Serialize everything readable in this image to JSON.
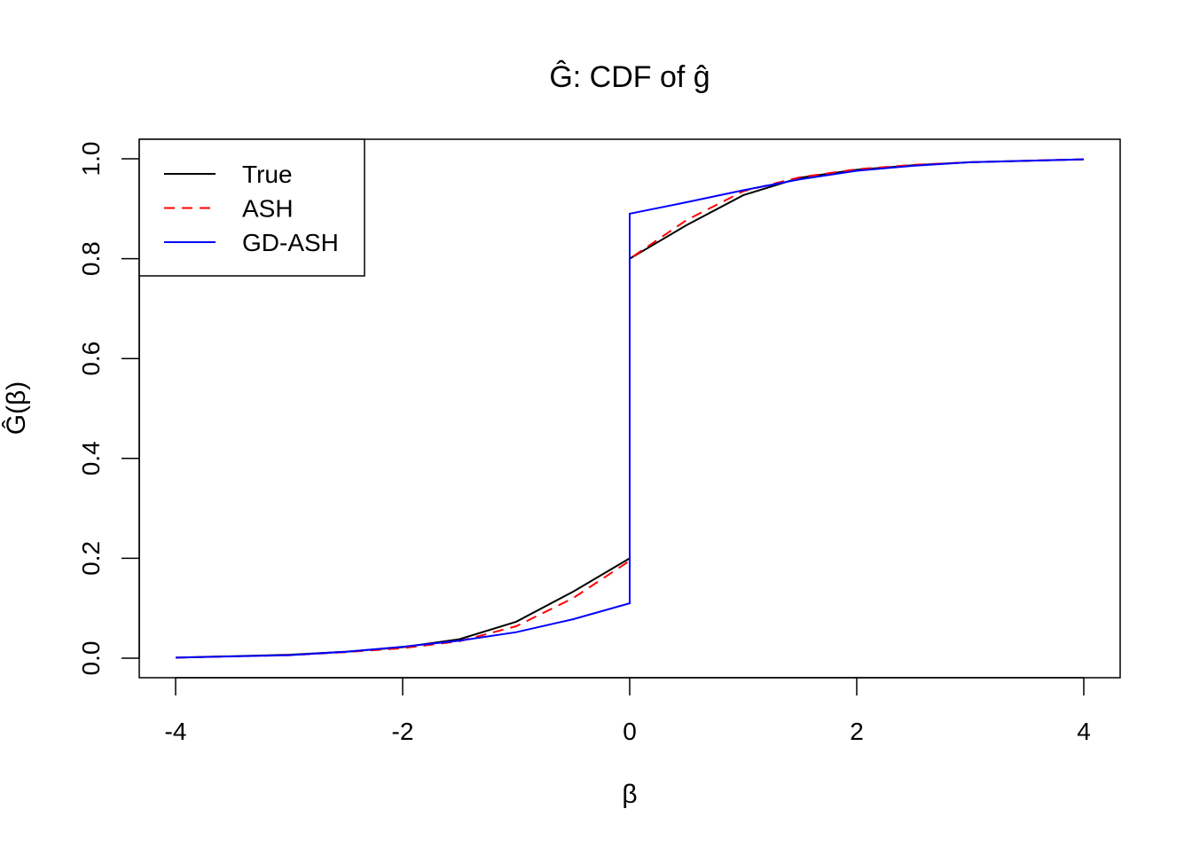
{
  "chart_data": {
    "type": "line",
    "title": "Ĝ: CDF of ĝ",
    "xlabel": "β",
    "ylabel": "Ĝ(β)",
    "xlim": [
      -4,
      4
    ],
    "ylim": [
      0,
      1
    ],
    "xticks": [
      "-4",
      "-2",
      "0",
      "2",
      "4"
    ],
    "yticks": [
      "0.0",
      "0.2",
      "0.4",
      "0.6",
      "0.8",
      "1.0"
    ],
    "grid": false,
    "legend_position": "top-left",
    "series": [
      {
        "name": "True",
        "color": "#000000",
        "dash": "solid",
        "points": [
          [
            -4,
            0.001
          ],
          [
            -3,
            0.007
          ],
          [
            -2.5,
            0.013
          ],
          [
            -2,
            0.022
          ],
          [
            -1.5,
            0.038
          ],
          [
            -1,
            0.073
          ],
          [
            -0.5,
            0.133
          ],
          [
            0,
            0.2
          ],
          [
            0,
            0.8
          ],
          [
            0.5,
            0.867
          ],
          [
            1,
            0.927
          ],
          [
            1.5,
            0.962
          ],
          [
            2,
            0.978
          ],
          [
            2.5,
            0.987
          ],
          [
            3,
            0.993
          ],
          [
            4,
            0.999
          ]
        ]
      },
      {
        "name": "ASH",
        "color": "#ff0000",
        "dash": "dashed",
        "points": [
          [
            -4,
            0.001
          ],
          [
            -3,
            0.006
          ],
          [
            -2.5,
            0.012
          ],
          [
            -2,
            0.02
          ],
          [
            -1.5,
            0.034
          ],
          [
            -1,
            0.064
          ],
          [
            -0.5,
            0.12
          ],
          [
            0,
            0.195
          ],
          [
            0,
            0.8
          ],
          [
            0.5,
            0.877
          ],
          [
            1,
            0.935
          ],
          [
            1.5,
            0.963
          ],
          [
            2,
            0.979
          ],
          [
            2.5,
            0.988
          ],
          [
            3,
            0.993
          ],
          [
            4,
            0.999
          ]
        ]
      },
      {
        "name": "GD-ASH",
        "color": "#0000ff",
        "dash": "solid",
        "points": [
          [
            -4,
            0.001
          ],
          [
            -3,
            0.006
          ],
          [
            -2.5,
            0.013
          ],
          [
            -2,
            0.023
          ],
          [
            -1.5,
            0.035
          ],
          [
            -1,
            0.052
          ],
          [
            -0.5,
            0.078
          ],
          [
            0,
            0.11
          ],
          [
            0,
            0.89
          ],
          [
            0.5,
            0.913
          ],
          [
            1,
            0.937
          ],
          [
            1.5,
            0.959
          ],
          [
            2,
            0.976
          ],
          [
            2.5,
            0.986
          ],
          [
            3,
            0.993
          ],
          [
            4,
            0.999
          ]
        ]
      }
    ]
  }
}
